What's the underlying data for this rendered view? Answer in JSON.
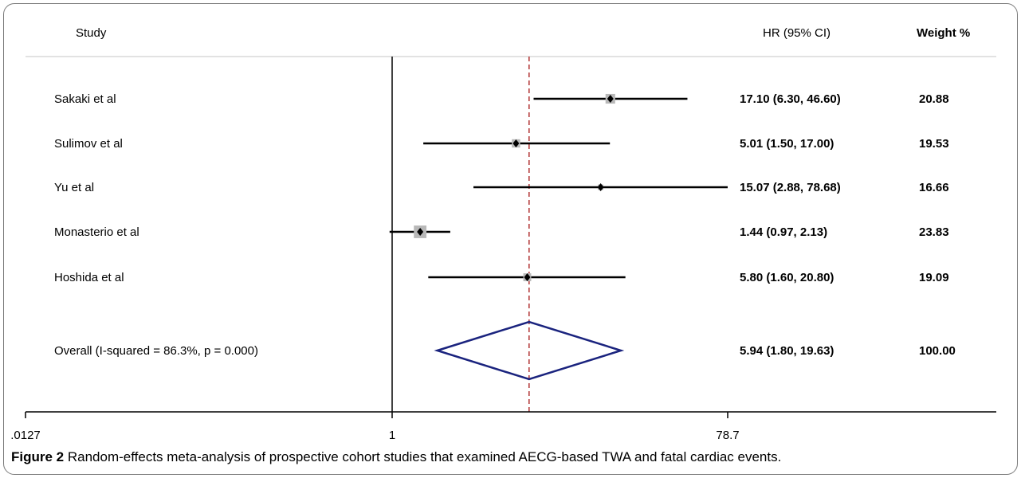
{
  "chart_data": {
    "type": "forest",
    "columns": {
      "study": "Study",
      "hr": "HR (95% CI)",
      "weight": "Weight %"
    },
    "studies": [
      {
        "label": "Sakaki et al",
        "hr": 17.1,
        "lo": 6.3,
        "hi": 46.6,
        "hr_text": "17.10 (6.30, 46.60)",
        "weight": "20.88"
      },
      {
        "label": "Sulimov et al",
        "hr": 5.01,
        "lo": 1.5,
        "hi": 17.0,
        "hr_text": "5.01 (1.50, 17.00)",
        "weight": "19.53"
      },
      {
        "label": "Yu et al",
        "hr": 15.07,
        "lo": 2.88,
        "hi": 78.68,
        "hr_text": "15.07 (2.88, 78.68)",
        "weight": "16.66"
      },
      {
        "label": "Monasterio et al",
        "hr": 1.44,
        "lo": 0.97,
        "hi": 2.13,
        "hr_text": "1.44 (0.97, 2.13)",
        "weight": "23.83"
      },
      {
        "label": "Hoshida et al",
        "hr": 5.8,
        "lo": 1.6,
        "hi": 20.8,
        "hr_text": "5.80 (1.60, 20.80)",
        "weight": "19.09"
      }
    ],
    "overall": {
      "label": "Overall  (I-squared = 86.3%, p = 0.000)",
      "hr": 5.94,
      "lo": 1.8,
      "hi": 19.63,
      "hr_text": "5.94 (1.80, 19.63)",
      "weight": "100.00"
    },
    "x_scale": "log",
    "xlim": [
      0.0127,
      78.7
    ],
    "x_ticks": [
      {
        "value": 0.0127,
        "label": ".0127"
      },
      {
        "value": 1,
        "label": "1"
      },
      {
        "value": 78.7,
        "label": "78.7"
      }
    ],
    "null_line": 1,
    "colors": {
      "overall_diamond": "#1a237e",
      "overall_line": "#b03030",
      "marker_box": "#b8b8b8",
      "ci_line": "#000000"
    }
  },
  "caption": {
    "label": "Figure 2",
    "text": "Random-effects meta-analysis of prospective cohort studies that examined AECG-based TWA and fatal cardiac events."
  }
}
